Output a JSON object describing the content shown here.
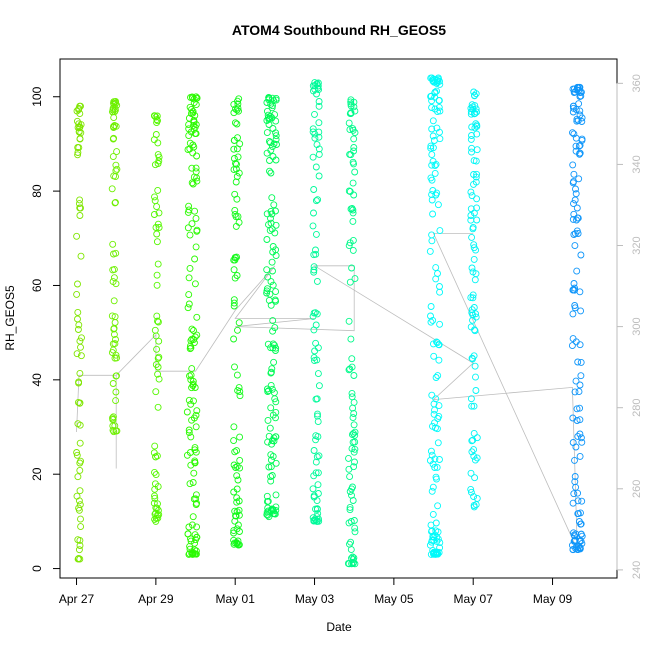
{
  "chart_data": {
    "type": "scatter",
    "title": "ATOM4 Southbound RH_GEOS5",
    "xlabel": "Date",
    "ylabel": "RH_GEOS5",
    "x_ticks": [
      {
        "date": "2018-04-27",
        "label": "Apr 27"
      },
      {
        "date": "2018-04-29",
        "label": "Apr 29"
      },
      {
        "date": "2018-05-01",
        "label": "May 01"
      },
      {
        "date": "2018-05-03",
        "label": "May 03"
      },
      {
        "date": "2018-05-05",
        "label": "May 05"
      },
      {
        "date": "2018-05-07",
        "label": "May 07"
      },
      {
        "date": "2018-05-09",
        "label": "May 09"
      }
    ],
    "xlim": [
      "2018-04-26 14:00",
      "2018-05-10 15:00"
    ],
    "ylim": [
      -2,
      108
    ],
    "y_ticks": [
      0,
      20,
      40,
      60,
      80,
      100
    ],
    "y2_ticks": [
      240,
      260,
      280,
      300,
      320,
      340,
      360
    ],
    "y2lim": [
      238,
      366
    ],
    "grid": false,
    "legend": "none",
    "marker": "open circle",
    "colors": {
      "secondary_line": "#bdbdbd",
      "right_axis": "#bdbdbd"
    },
    "flights": [
      {
        "start": "2018-04-27 00:00",
        "end": "2018-04-27 03:00",
        "rh_min": 2,
        "rh_max": 98,
        "color": "#7fe600"
      },
      {
        "start": "2018-04-27 21:30",
        "end": "2018-04-28 00:30",
        "rh_min": 29,
        "rh_max": 99,
        "color": "#6ef000"
      },
      {
        "start": "2018-04-28 23:00",
        "end": "2018-04-29 02:00",
        "rh_min": 10,
        "rh_max": 96,
        "color": "#55f700"
      },
      {
        "start": "2018-04-29 19:00",
        "end": "2018-04-30 01:00",
        "rh_min": 3,
        "rh_max": 100,
        "color": "#2bfa00"
      },
      {
        "start": "2018-04-30 23:00",
        "end": "2018-05-01 03:00",
        "rh_min": 5,
        "rh_max": 100,
        "color": "#14fa1a"
      },
      {
        "start": "2018-05-01 19:00",
        "end": "2018-05-02 01:00",
        "rh_min": 11,
        "rh_max": 100,
        "color": "#00fa55"
      },
      {
        "start": "2018-05-02 23:00",
        "end": "2018-05-03 03:00",
        "rh_min": 10,
        "rh_max": 103,
        "color": "#00fa9a"
      },
      {
        "start": "2018-05-03 20:30",
        "end": "2018-05-04 00:30",
        "rh_min": 1,
        "rh_max": 101,
        "color": "#00fa8a"
      },
      {
        "start": "2018-05-05 22:00",
        "end": "2018-05-06 04:00",
        "rh_min": 3,
        "rh_max": 104,
        "color": "#00fafa"
      },
      {
        "start": "2018-05-06 22:30",
        "end": "2018-05-07 02:30",
        "rh_min": 13,
        "rh_max": 101,
        "color": "#00f5f5"
      },
      {
        "start": "2018-05-09 12:00",
        "end": "2018-05-09 18:00",
        "rh_min": 4,
        "rh_max": 102,
        "color": "#0f96fa"
      }
    ],
    "secondary_series": {
      "axis": "right",
      "points": [
        {
          "x": "2018-04-27 00:00",
          "y": 274
        },
        {
          "x": "2018-04-27 01:30",
          "y": 288
        },
        {
          "x": "2018-04-28 00:00",
          "y": 288
        },
        {
          "x": "2018-04-28 00:00",
          "y": 265
        },
        {
          "x": "2018-04-28 00:00",
          "y": 288
        },
        {
          "x": "2018-04-29 00:00",
          "y": 298
        },
        {
          "x": "2018-04-29 00:00",
          "y": 289
        },
        {
          "x": "2018-04-30 00:00",
          "y": 289
        },
        {
          "x": "2018-05-01 00:00",
          "y": 304
        },
        {
          "x": "2018-05-02 00:00",
          "y": 315
        },
        {
          "x": "2018-05-01 00:00",
          "y": 302
        },
        {
          "x": "2018-05-03 00:00",
          "y": 302
        },
        {
          "x": "2018-05-01 00:00",
          "y": 300
        },
        {
          "x": "2018-05-04 00:00",
          "y": 299
        },
        {
          "x": "2018-05-04 00:00",
          "y": 315
        },
        {
          "x": "2018-05-03 00:00",
          "y": 315
        },
        {
          "x": "2018-05-07 00:00",
          "y": 291
        },
        {
          "x": "2018-05-06 00:00",
          "y": 282
        },
        {
          "x": "2018-05-09 12:00",
          "y": 285
        },
        {
          "x": "2018-05-09 15:00",
          "y": 245
        },
        {
          "x": "2018-05-06 00:00",
          "y": 323
        },
        {
          "x": "2018-05-07 00:00",
          "y": 323
        }
      ]
    }
  }
}
